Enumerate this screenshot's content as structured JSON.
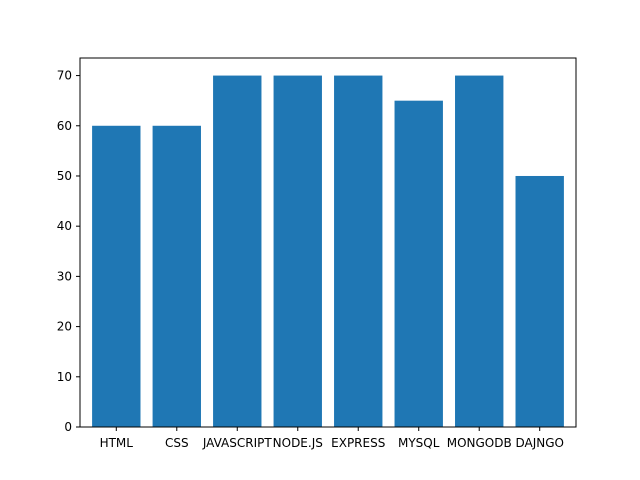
{
  "chart_data": {
    "type": "bar",
    "categories": [
      "HTML",
      "CSS",
      "JAVASCRIPT",
      "NODE.JS",
      "EXPRESS",
      "MYSQL",
      "MONGODB",
      "DAJNGO"
    ],
    "values": [
      60,
      60,
      70,
      70,
      70,
      65,
      70,
      50
    ],
    "title": "",
    "xlabel": "",
    "ylabel": "",
    "ylim": [
      0,
      73.5
    ],
    "yticks": [
      0,
      10,
      20,
      30,
      40,
      50,
      60,
      70
    ],
    "grid": false,
    "bar_color": "#1f77b4"
  }
}
